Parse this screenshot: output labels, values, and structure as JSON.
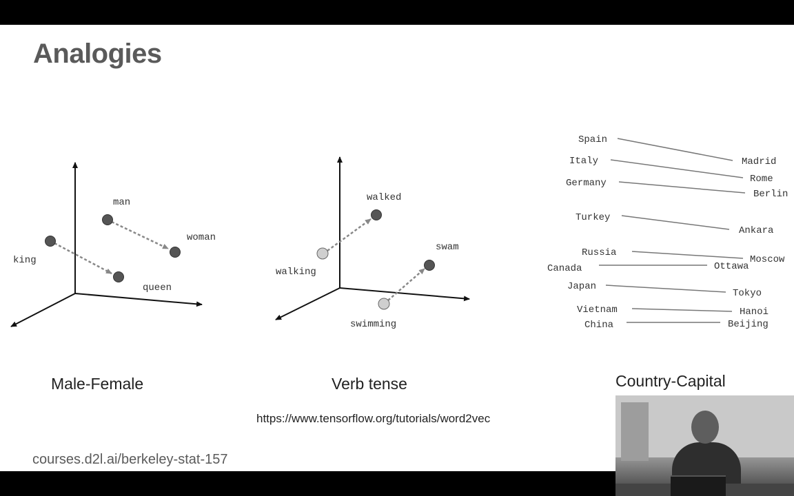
{
  "slide": {
    "title": "Analogies",
    "footer": "courses.d2l.ai/berkeley-stat-157",
    "source_url": "https://www.tensorflow.org/tutorials/word2vec"
  },
  "panels": [
    {
      "caption": "Male-Female",
      "words": [
        "man",
        "woman",
        "king",
        "queen"
      ]
    },
    {
      "caption": "Verb tense",
      "words": [
        "walked",
        "walking",
        "swam",
        "swimming"
      ]
    },
    {
      "caption": "Country-Capital",
      "pairs": [
        {
          "country": "Spain",
          "capital": "Madrid"
        },
        {
          "country": "Italy",
          "capital": "Rome"
        },
        {
          "country": "Germany",
          "capital": "Berlin"
        },
        {
          "country": "Turkey",
          "capital": "Ankara"
        },
        {
          "country": "Russia",
          "capital": "Moscow"
        },
        {
          "country": "Canada",
          "capital": "Ottawa"
        },
        {
          "country": "Japan",
          "capital": "Tokyo"
        },
        {
          "country": "Vietnam",
          "capital": "Hanoi"
        },
        {
          "country": "China",
          "capital": "Beijing"
        }
      ]
    }
  ],
  "colors": {
    "dark_point": "#555555",
    "light_point": "#cfcfcf",
    "arrow": "#888888",
    "axis": "#111111",
    "title": "#5a5a5a"
  }
}
